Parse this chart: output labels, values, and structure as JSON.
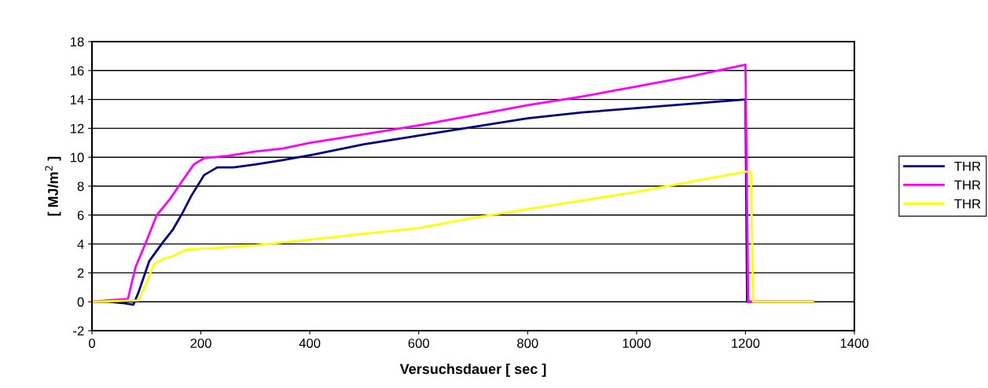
{
  "chart_data": {
    "type": "line",
    "xlabel": "Versuchsdauer [ sec ]",
    "ylabel": "[ MJ/m$^{2}$ ]",
    "xlim": [
      0,
      1400
    ],
    "ylim": [
      -2,
      18
    ],
    "xticks": [
      0,
      200,
      400,
      600,
      800,
      1000,
      1200,
      1400
    ],
    "yticks": [
      -2,
      0,
      2,
      4,
      6,
      8,
      10,
      12,
      14,
      16,
      18
    ],
    "grid": "y",
    "legend": "right",
    "marker": "none",
    "line_style": "solid",
    "series": [
      {
        "name": "THR",
        "color": "#000080",
        "x": [
          0,
          30,
          60,
          76,
          85,
          105,
          129,
          148,
          167,
          182,
          206,
          230,
          260,
          300,
          350,
          408,
          500,
          600,
          700,
          800,
          900,
          1000,
          1100,
          1200,
          1203,
          1324
        ],
        "values": [
          0,
          0,
          -0.1,
          -0.2,
          0.6,
          2.8,
          4.05,
          4.96,
          6.2,
          7.3,
          8.77,
          9.3,
          9.3,
          9.5,
          9.8,
          10.2,
          10.9,
          11.5,
          12.1,
          12.7,
          13.1,
          13.4,
          13.7,
          14.0,
          0,
          0
        ]
      },
      {
        "name": "THR",
        "color": "#ff00ff",
        "x": [
          0,
          30,
          66,
          80,
          100,
          119,
          143,
          163,
          187,
          206,
          250,
          300,
          350,
          400,
          500,
          600,
          700,
          800,
          900,
          1000,
          1100,
          1200,
          1205,
          1324
        ],
        "values": [
          0,
          0.1,
          0.2,
          2.4,
          4.2,
          6.0,
          7.1,
          8.2,
          9.5,
          9.94,
          10.1,
          10.4,
          10.6,
          11.0,
          11.6,
          12.2,
          12.9,
          13.6,
          14.2,
          14.9,
          15.6,
          16.4,
          0,
          0
        ]
      },
      {
        "name": "THR",
        "color": "#ffff00",
        "x": [
          0,
          40,
          85,
          100,
          114,
          133,
          148,
          172,
          220,
          300,
          400,
          500,
          600,
          700,
          800,
          900,
          1000,
          1100,
          1200,
          1210,
          1214,
          1324
        ],
        "values": [
          0,
          0.05,
          0.1,
          1.3,
          2.6,
          3.0,
          3.14,
          3.6,
          3.7,
          3.9,
          4.3,
          4.7,
          5.1,
          5.8,
          6.4,
          7.0,
          7.6,
          8.3,
          9.0,
          9.0,
          0,
          0
        ]
      }
    ]
  }
}
